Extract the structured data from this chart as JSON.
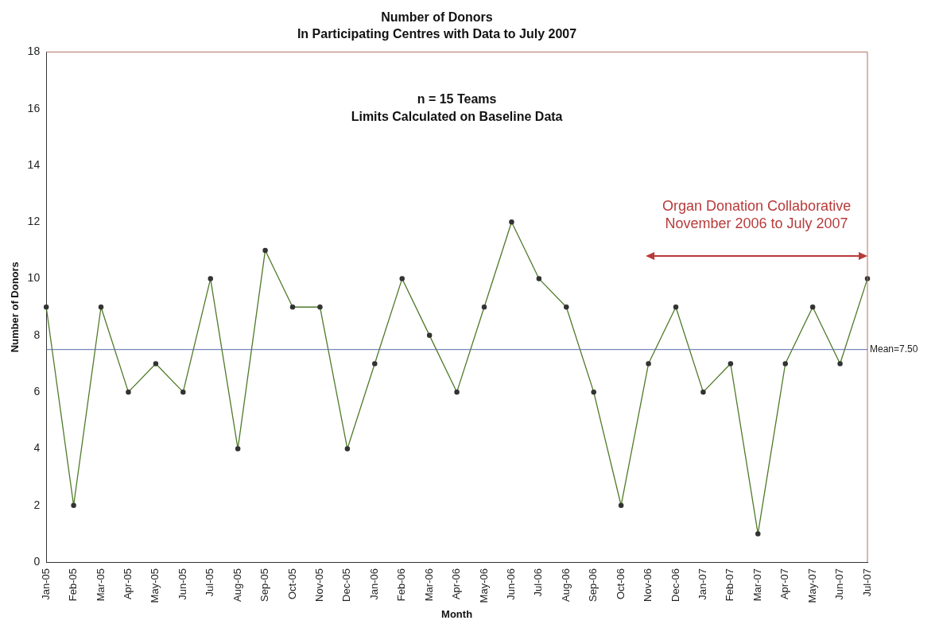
{
  "chart_data": {
    "type": "line",
    "title": "Number of Donors",
    "subtitle": "In Participating Centres with Data to July 2007",
    "xlabel": "Month",
    "ylabel": "Number of Donors",
    "categories": [
      "Jan-05",
      "Feb-05",
      "Mar-05",
      "Apr-05",
      "May-05",
      "Jun-05",
      "Jul-05",
      "Aug-05",
      "Sep-05",
      "Oct-05",
      "Nov-05",
      "Dec-05",
      "Jan-06",
      "Feb-06",
      "Mar-06",
      "Apr-06",
      "May-06",
      "Jun-06",
      "Jul-06",
      "Aug-06",
      "Sep-06",
      "Oct-06",
      "Nov-06",
      "Dec-06",
      "Jan-07",
      "Feb-07",
      "Mar-07",
      "Apr-07",
      "May-07",
      "Jun-07",
      "Jul-07"
    ],
    "series": [
      {
        "color": "#4f7a28",
        "values": [
          9,
          2,
          9,
          6,
          7,
          6,
          10,
          4,
          11,
          9,
          9,
          4,
          7,
          10,
          8,
          6,
          9,
          12,
          10,
          9,
          6,
          2,
          7,
          9,
          6,
          7,
          1,
          7,
          9,
          7,
          10
        ]
      }
    ],
    "ylim": [
      0,
      18
    ],
    "yticks": [
      0,
      2,
      4,
      6,
      8,
      10,
      12,
      14,
      16,
      18
    ],
    "grid": false,
    "legend": false,
    "marker": "circle",
    "line_style": "solid",
    "ref_lines": [
      {
        "axis": "y",
        "value": 7.5,
        "label": "Mean=7.50",
        "color": "#5b6ba8"
      }
    ],
    "annotations": [
      "n = 15 Teams\nLimits Calculated on Baseline Data",
      "Organ Donation Collaborative\nNovember 2006 to July 2007"
    ]
  }
}
